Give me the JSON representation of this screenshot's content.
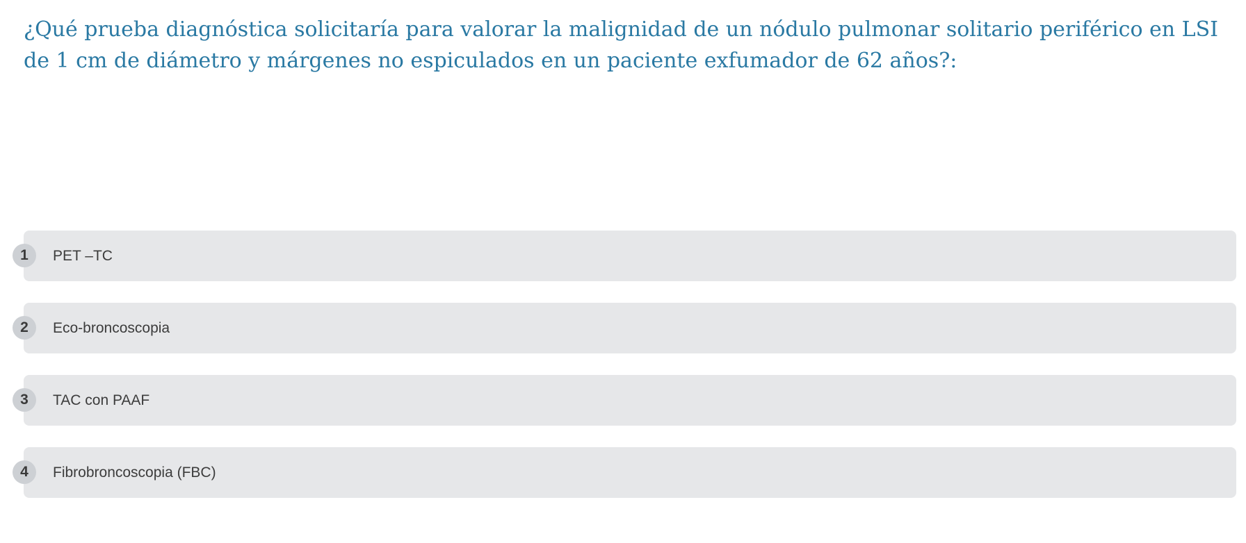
{
  "question": {
    "text": "¿Qué prueba diagnóstica solicitaría para valorar la malignidad de un nódulo pulmonar solitario periférico en LSI de 1 cm de diámetro y márgenes no espiculados en un paciente exfumador de 62 años?:"
  },
  "options": [
    {
      "number": "1",
      "label": "PET –TC"
    },
    {
      "number": "2",
      "label": "Eco-broncoscopia"
    },
    {
      "number": "3",
      "label": "TAC con PAAF"
    },
    {
      "number": "4",
      "label": "Fibrobroncoscopia (FBC)"
    }
  ],
  "colors": {
    "question_text": "#2a79a3",
    "option_background": "#e6e7e9",
    "number_badge": "#cdd0d4",
    "option_text": "#3c3c3c"
  }
}
